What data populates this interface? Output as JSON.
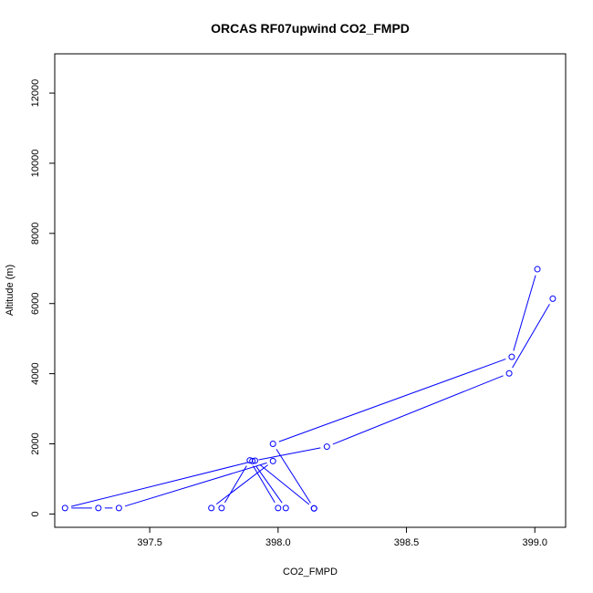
{
  "chart_data": {
    "type": "scatter",
    "title": "ORCAS RF07upwind CO2_FMPD",
    "xlabel": "CO2_FMPD",
    "ylabel": "Altitude (m)",
    "xlim": [
      397.13,
      399.12
    ],
    "ylim": [
      -380,
      13120
    ],
    "xticks": [
      "397.5",
      "398.0",
      "398.5",
      "399.0"
    ],
    "yticks": [
      "0",
      "2000",
      "4000",
      "6000",
      "8000",
      "10000",
      "12000"
    ],
    "grid": false,
    "series": [
      {
        "color": "#0000ff",
        "marker": "open-circle",
        "line": true,
        "x": [
          399.01,
          398.91,
          397.98,
          398.14,
          398.14,
          397.91,
          397.17,
          397.3,
          397.38,
          397.98,
          397.74,
          397.78,
          397.89,
          398.0,
          398.03,
          397.9,
          398.19,
          398.9,
          399.07
        ],
        "y": [
          6980,
          4480,
          2000,
          160,
          160,
          1520,
          170,
          170,
          170,
          1510,
          170,
          170,
          1530,
          170,
          170,
          1510,
          1920,
          4010,
          6140
        ]
      }
    ]
  }
}
